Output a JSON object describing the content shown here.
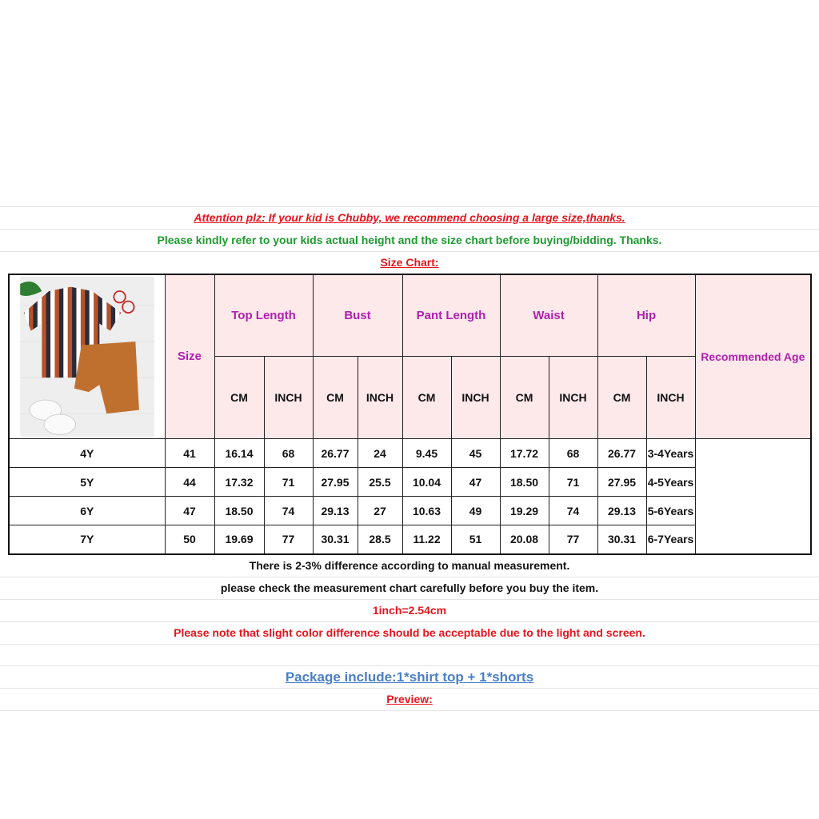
{
  "notes_top": {
    "attention": "Attention plz: If your kid is Chubby, we recommend choosing a large size,thanks.",
    "refer": "Please kindly refer to your kids actual height and the size chart before buying/bidding. Thanks.",
    "size_chart_label": "Size Chart:"
  },
  "table": {
    "size_header": "Size",
    "groups": [
      "Top Length",
      "Bust",
      "Pant Length",
      "Waist",
      "Hip"
    ],
    "units": [
      "CM",
      "INCH"
    ],
    "age_header": "Recommended Age",
    "rows": [
      {
        "size": "4Y",
        "values": [
          "41",
          "16.14",
          "68",
          "26.77",
          "24",
          "9.45",
          "45",
          "17.72",
          "68",
          "26.77"
        ],
        "age": "3-4Years"
      },
      {
        "size": "5Y",
        "values": [
          "44",
          "17.32",
          "71",
          "27.95",
          "25.5",
          "10.04",
          "47",
          "18.50",
          "71",
          "27.95"
        ],
        "age": "4-5Years"
      },
      {
        "size": "6Y",
        "values": [
          "47",
          "18.50",
          "74",
          "29.13",
          "27",
          "10.63",
          "49",
          "19.29",
          "74",
          "29.13"
        ],
        "age": "5-6Years"
      },
      {
        "size": "7Y",
        "values": [
          "50",
          "19.69",
          "77",
          "30.31",
          "28.5",
          "11.22",
          "51",
          "20.08",
          "77",
          "30.31"
        ],
        "age": "6-7Years"
      }
    ]
  },
  "notes_bottom": {
    "difference": "There is 2-3% difference according to manual measurement.",
    "check": "please check the measurement chart carefully before you buy the item.",
    "conversion": "1inch=2.54cm",
    "color_note": "Please note that slight color difference should be acceptable due to the light and screen.",
    "package": "Package include:1*shirt top + 1*shorts",
    "preview": "Preview:"
  },
  "colors": {
    "header_bg": "#fde8ea",
    "header_text": "#b020b0",
    "red": "#e8141b",
    "green": "#1d9b2f",
    "blue": "#4a7fc8"
  }
}
